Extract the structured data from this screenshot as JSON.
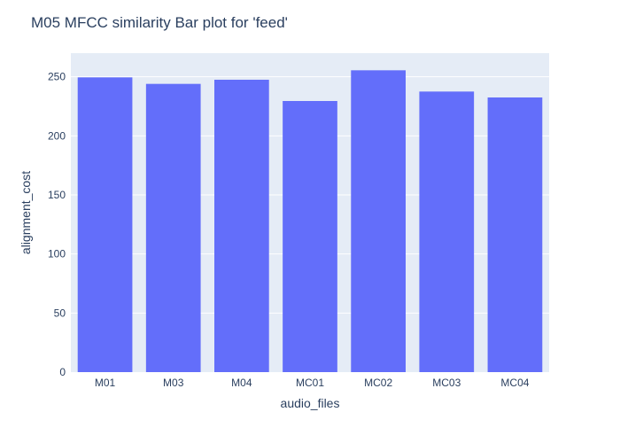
{
  "chart_data": {
    "type": "bar",
    "title": "M05 MFCC similarity Bar plot for 'feed'",
    "xlabel": "audio_files",
    "ylabel": "alignment_cost",
    "categories": [
      "M01",
      "M03",
      "M04",
      "MC01",
      "MC02",
      "MC03",
      "MC04"
    ],
    "values": [
      249.5,
      244,
      247.5,
      229.5,
      255.5,
      237.5,
      232.5
    ],
    "ylim": [
      0,
      270
    ],
    "yticks": [
      "0",
      "50",
      "100",
      "150",
      "200",
      "250"
    ],
    "grid": true,
    "legend": "none",
    "colors": {
      "bar": "#636efa",
      "plot_bg": "#e5ecf6",
      "grid": "#ffffff",
      "text": "#2a3f5f"
    }
  }
}
